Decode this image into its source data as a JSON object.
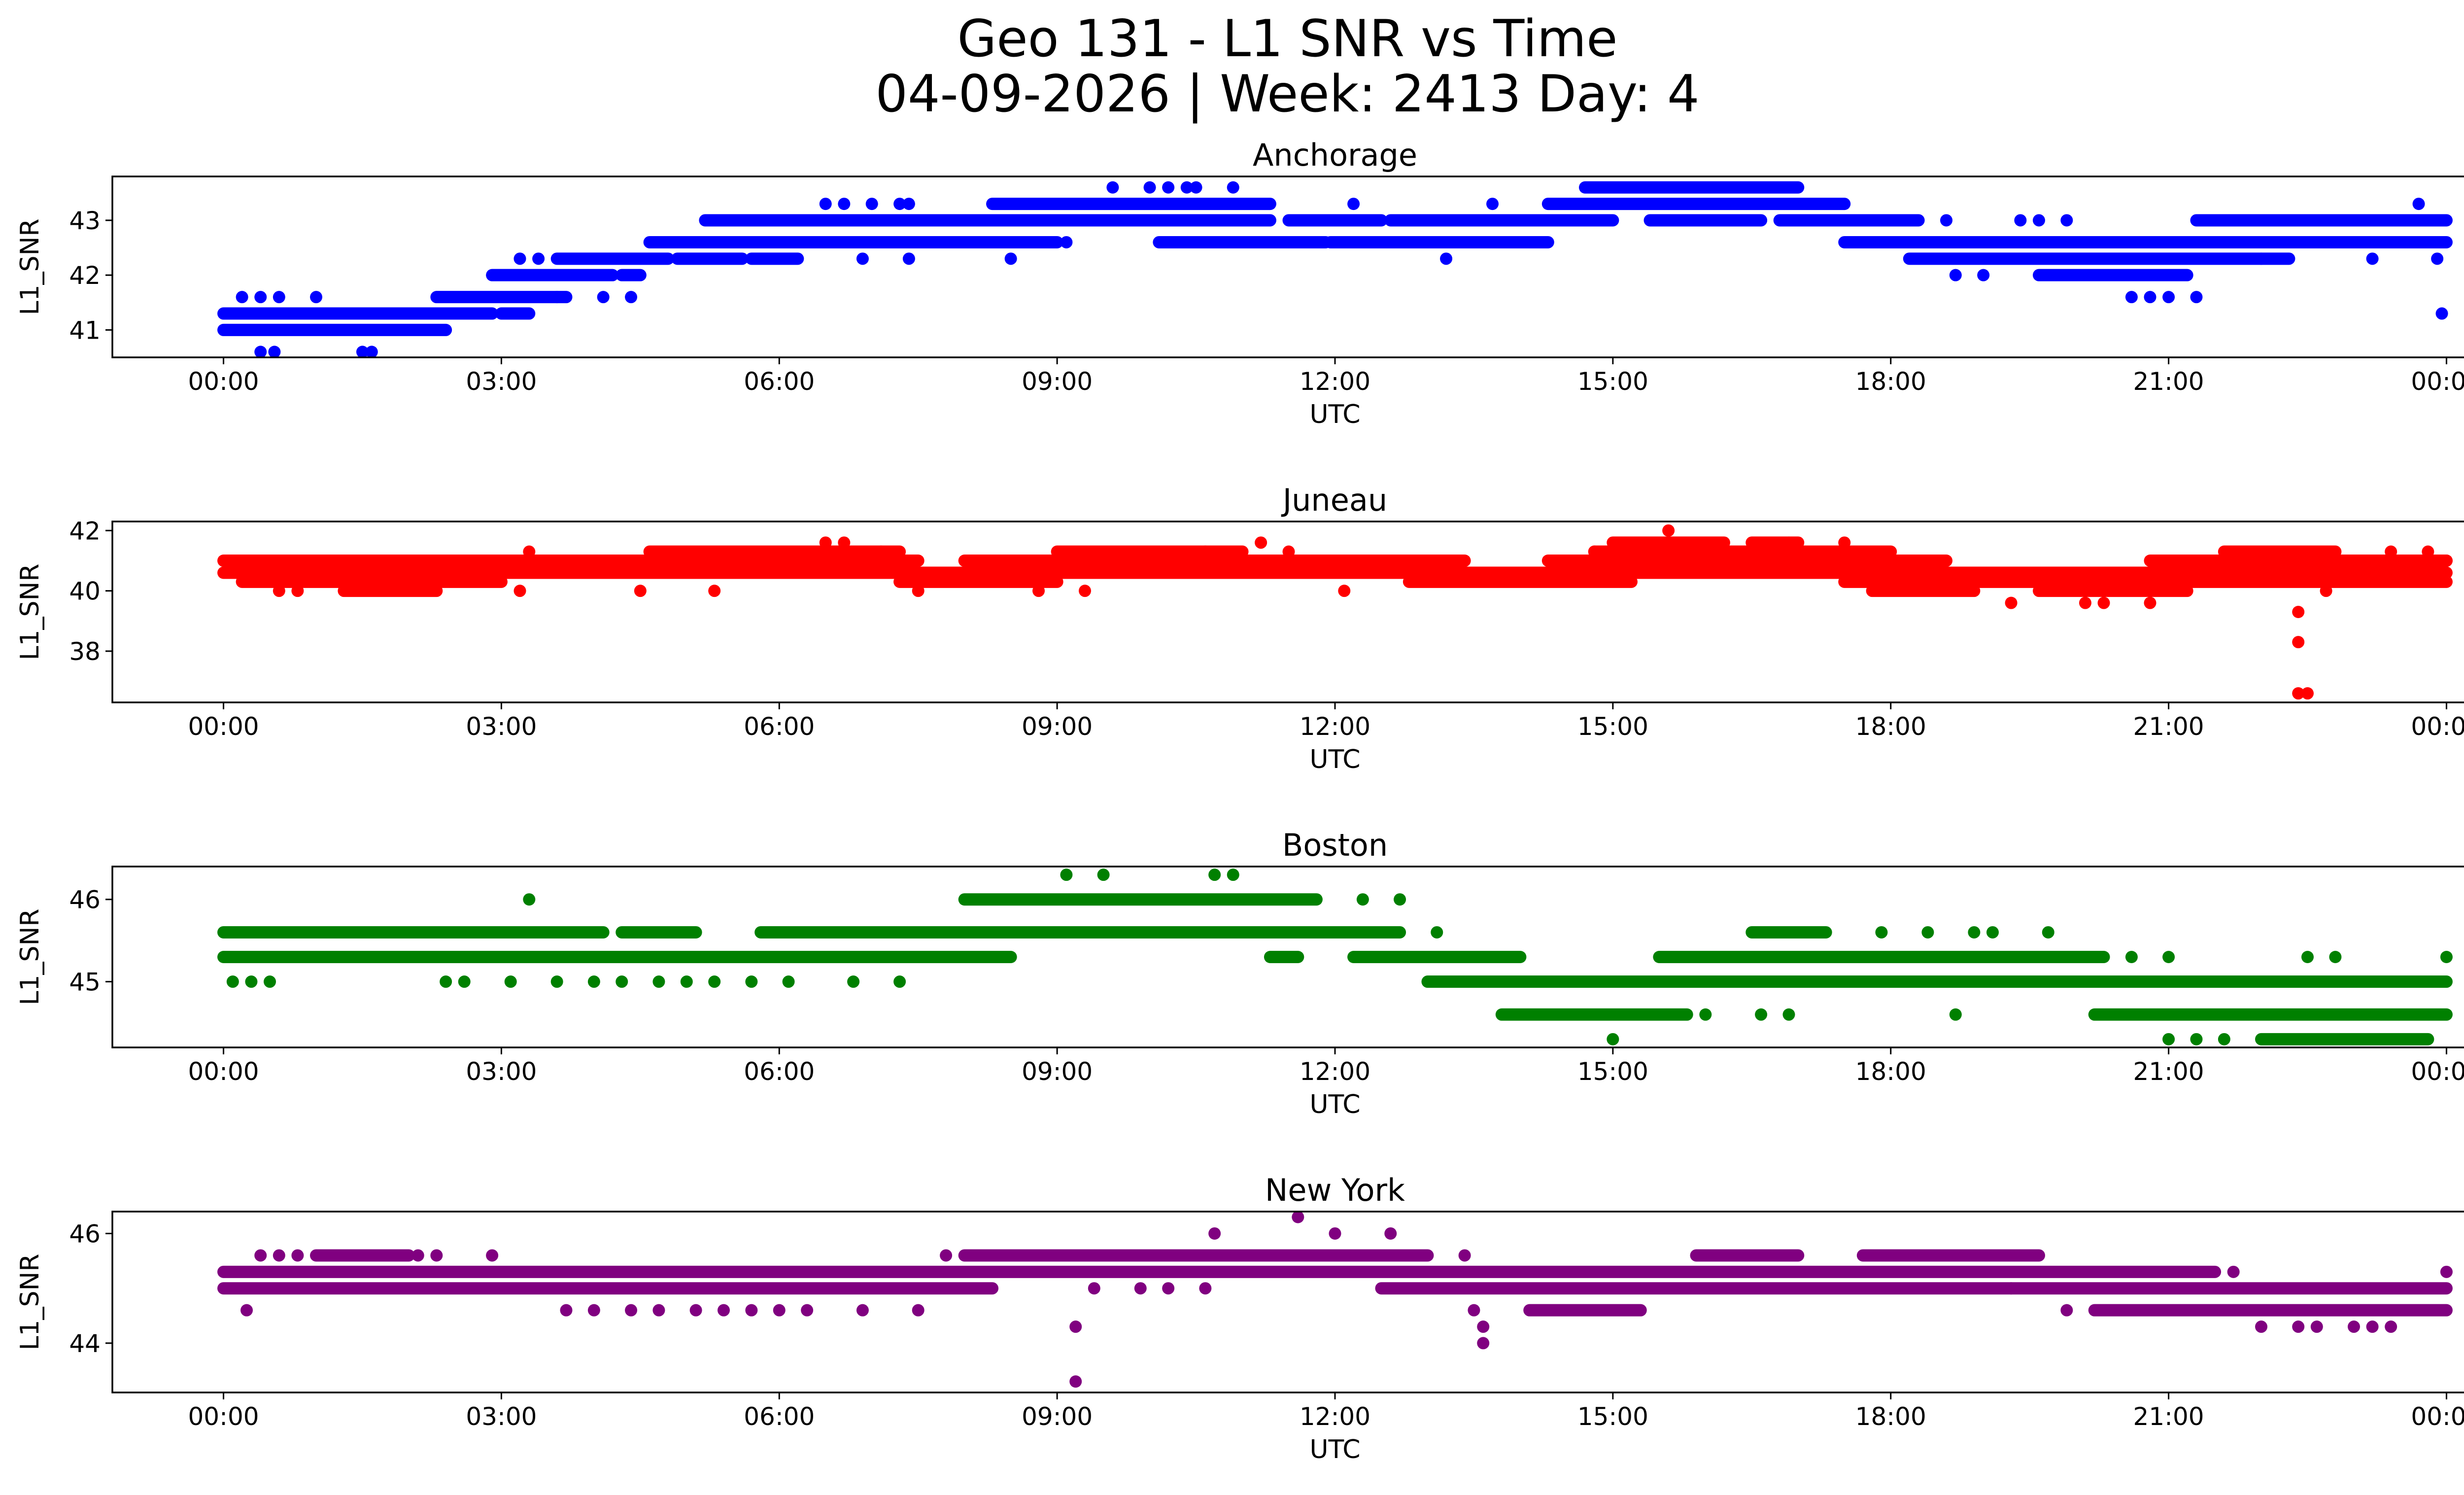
{
  "figure": {
    "title_line1": "Geo 131 - L1 SNR vs Time",
    "title_line2": "04-09-2026 | Week: 2413 Day: 4"
  },
  "chart_data": [
    {
      "type": "scatter",
      "title": "Anchorage",
      "xlabel": "UTC",
      "ylabel": "L1_SNR",
      "color": "#0000ff",
      "xticks": [
        0,
        3,
        6,
        9,
        12,
        15,
        18,
        21,
        24
      ],
      "xtick_labels": [
        "00:00",
        "03:00",
        "06:00",
        "09:00",
        "12:00",
        "15:00",
        "18:00",
        "21:00",
        "00:00"
      ],
      "xlim": [
        -1.2,
        25.2
      ],
      "yticks": [
        41,
        42,
        43
      ],
      "ylim": [
        40.5,
        43.8
      ],
      "bands": [
        {
          "y": 41.0,
          "ranges": [
            [
              0,
              2.4
            ]
          ]
        },
        {
          "y": 41.3,
          "ranges": [
            [
              0,
              2.9
            ],
            [
              3.0,
              3.3
            ]
          ]
        },
        {
          "y": 41.6,
          "ranges": [
            [
              2.3,
              3.7
            ]
          ]
        },
        {
          "y": 42.0,
          "ranges": [
            [
              2.9,
              4.2
            ],
            [
              4.3,
              4.5
            ]
          ]
        },
        {
          "y": 42.3,
          "ranges": [
            [
              3.6,
              4.8
            ],
            [
              4.9,
              5.6
            ],
            [
              5.7,
              6.2
            ]
          ]
        },
        {
          "y": 42.6,
          "ranges": [
            [
              4.6,
              9.0
            ],
            [
              10.1,
              11.9
            ],
            [
              11.95,
              14.3
            ],
            [
              17.5,
              24.0
            ]
          ]
        },
        {
          "y": 43.0,
          "ranges": [
            [
              5.2,
              11.3
            ],
            [
              11.5,
              12.5
            ],
            [
              12.6,
              15.0
            ],
            [
              15.4,
              16.6
            ],
            [
              16.8,
              18.3
            ],
            [
              21.3,
              24.0
            ]
          ]
        },
        {
          "y": 43.3,
          "ranges": [
            [
              8.3,
              11.3
            ],
            [
              14.3,
              17.5
            ]
          ]
        },
        {
          "y": 43.6,
          "ranges": [
            [
              14.7,
              17.0
            ]
          ]
        },
        {
          "y": 42.3,
          "ranges": [
            [
              18.2,
              22.3
            ]
          ]
        },
        {
          "y": 42.0,
          "ranges": [
            [
              19.6,
              21.2
            ]
          ]
        }
      ],
      "points": [
        [
          0.2,
          41.6
        ],
        [
          0.4,
          41.6
        ],
        [
          0.6,
          41.6
        ],
        [
          0.4,
          40.6
        ],
        [
          0.55,
          40.6
        ],
        [
          1.0,
          41.6
        ],
        [
          1.5,
          40.6
        ],
        [
          1.6,
          40.6
        ],
        [
          3.2,
          42.3
        ],
        [
          3.4,
          42.3
        ],
        [
          3.6,
          41.6
        ],
        [
          4.1,
          41.6
        ],
        [
          4.4,
          41.6
        ],
        [
          5.3,
          43.0
        ],
        [
          6.5,
          43.3
        ],
        [
          6.7,
          43.3
        ],
        [
          6.9,
          42.3
        ],
        [
          7.0,
          43.3
        ],
        [
          7.3,
          43.3
        ],
        [
          7.4,
          43.3
        ],
        [
          7.4,
          42.3
        ],
        [
          8.5,
          42.3
        ],
        [
          9.1,
          42.6
        ],
        [
          9.6,
          43.6
        ],
        [
          10.0,
          43.6
        ],
        [
          10.2,
          43.6
        ],
        [
          10.3,
          42.6
        ],
        [
          10.4,
          43.6
        ],
        [
          10.5,
          43.6
        ],
        [
          10.9,
          43.6
        ],
        [
          12.2,
          43.3
        ],
        [
          13.2,
          42.3
        ],
        [
          13.7,
          43.3
        ],
        [
          15.8,
          43.0
        ],
        [
          18.6,
          43.0
        ],
        [
          18.7,
          42.0
        ],
        [
          19.0,
          42.0
        ],
        [
          19.4,
          43.0
        ],
        [
          19.6,
          43.0
        ],
        [
          19.9,
          43.0
        ],
        [
          20.6,
          41.6
        ],
        [
          20.8,
          41.6
        ],
        [
          21.0,
          41.6
        ],
        [
          21.3,
          41.6
        ],
        [
          22.0,
          42.3
        ],
        [
          23.2,
          42.3
        ],
        [
          23.7,
          43.3
        ],
        [
          23.9,
          42.3
        ],
        [
          23.95,
          41.3
        ],
        [
          23.9,
          43.0
        ]
      ]
    },
    {
      "type": "scatter",
      "title": "Juneau",
      "xlabel": "UTC",
      "ylabel": "L1_SNR",
      "color": "#ff0000",
      "xticks": [
        0,
        3,
        6,
        9,
        12,
        15,
        18,
        21,
        24
      ],
      "xtick_labels": [
        "00:00",
        "03:00",
        "06:00",
        "09:00",
        "12:00",
        "15:00",
        "18:00",
        "21:00",
        "00:00"
      ],
      "xlim": [
        -1.2,
        25.2
      ],
      "yticks": [
        38,
        40,
        42
      ],
      "ylim": [
        36.3,
        42.3
      ],
      "bands": [
        {
          "y": 40.6,
          "ranges": [
            [
              0,
              24.0
            ]
          ]
        },
        {
          "y": 41.0,
          "ranges": [
            [
              0,
              7.5
            ],
            [
              8.0,
              13.4
            ],
            [
              14.3,
              18.6
            ],
            [
              20.8,
              24.0
            ]
          ]
        },
        {
          "y": 40.3,
          "ranges": [
            [
              0.2,
              3.0
            ],
            [
              7.3,
              9.0
            ],
            [
              12.8,
              15.2
            ],
            [
              17.5,
              24.0
            ]
          ]
        },
        {
          "y": 40.0,
          "ranges": [
            [
              1.3,
              2.3
            ],
            [
              17.8,
              18.9
            ],
            [
              19.6,
              21.2
            ]
          ]
        },
        {
          "y": 41.3,
          "ranges": [
            [
              4.6,
              7.3
            ],
            [
              9.0,
              11.0
            ],
            [
              14.8,
              18.0
            ],
            [
              21.6,
              22.8
            ]
          ]
        },
        {
          "y": 41.6,
          "ranges": [
            [
              15.0,
              16.2
            ],
            [
              16.5,
              17.0
            ]
          ]
        }
      ],
      "points": [
        [
          0.6,
          40.0
        ],
        [
          0.8,
          40.0
        ],
        [
          3.2,
          40.0
        ],
        [
          3.3,
          41.3
        ],
        [
          4.5,
          40.0
        ],
        [
          5.3,
          40.0
        ],
        [
          6.5,
          41.6
        ],
        [
          6.7,
          41.6
        ],
        [
          7.1,
          41.3
        ],
        [
          7.5,
          40.0
        ],
        [
          8.8,
          40.0
        ],
        [
          9.3,
          40.0
        ],
        [
          10.6,
          41.3
        ],
        [
          11.2,
          41.6
        ],
        [
          11.5,
          41.3
        ],
        [
          12.1,
          40.0
        ],
        [
          14.8,
          41.3
        ],
        [
          15.6,
          42.0
        ],
        [
          16.9,
          41.6
        ],
        [
          17.5,
          41.6
        ],
        [
          19.3,
          39.6
        ],
        [
          20.1,
          39.6
        ],
        [
          20.3,
          39.6
        ],
        [
          20.8,
          39.6
        ],
        [
          22.4,
          39.3
        ],
        [
          22.4,
          38.3
        ],
        [
          22.4,
          36.6
        ],
        [
          22.5,
          36.6
        ],
        [
          22.7,
          40.0
        ],
        [
          23.4,
          41.3
        ],
        [
          23.8,
          41.3
        ],
        [
          24.0,
          41.0
        ]
      ]
    },
    {
      "type": "scatter",
      "title": "Boston",
      "xlabel": "UTC",
      "ylabel": "L1_SNR",
      "color": "#008000",
      "xticks": [
        0,
        3,
        6,
        9,
        12,
        15,
        18,
        21,
        24
      ],
      "xtick_labels": [
        "00:00",
        "03:00",
        "06:00",
        "09:00",
        "12:00",
        "15:00",
        "18:00",
        "21:00",
        "00:00"
      ],
      "xlim": [
        -1.2,
        25.2
      ],
      "yticks": [
        45,
        46
      ],
      "ylim": [
        44.2,
        46.4
      ],
      "bands": [
        {
          "y": 45.3,
          "ranges": [
            [
              0,
              8.5
            ],
            [
              11.3,
              11.6
            ],
            [
              12.2,
              14.0
            ],
            [
              15.5,
              20.3
            ]
          ]
        },
        {
          "y": 45.6,
          "ranges": [
            [
              0,
              4.1
            ],
            [
              4.3,
              5.1
            ],
            [
              5.8,
              12.7
            ],
            [
              16.5,
              17.3
            ]
          ]
        },
        {
          "y": 45.0,
          "ranges": [
            [
              13.0,
              24.0
            ]
          ]
        },
        {
          "y": 44.6,
          "ranges": [
            [
              13.8,
              15.8
            ],
            [
              20.2,
              24.0
            ]
          ]
        },
        {
          "y": 46.0,
          "ranges": [
            [
              8.0,
              11.8
            ]
          ]
        },
        {
          "y": 44.3,
          "ranges": [
            [
              22.0,
              23.8
            ]
          ]
        }
      ],
      "points": [
        [
          0.1,
          45.0
        ],
        [
          0.3,
          45.0
        ],
        [
          0.5,
          45.0
        ],
        [
          2.4,
          45.0
        ],
        [
          2.6,
          45.0
        ],
        [
          3.1,
          45.0
        ],
        [
          3.3,
          46.0
        ],
        [
          3.6,
          45.0
        ],
        [
          4.0,
          45.0
        ],
        [
          4.3,
          45.0
        ],
        [
          4.7,
          45.0
        ],
        [
          5.0,
          45.0
        ],
        [
          5.3,
          45.0
        ],
        [
          5.7,
          45.0
        ],
        [
          6.1,
          45.0
        ],
        [
          6.8,
          45.0
        ],
        [
          7.3,
          45.0
        ],
        [
          9.1,
          46.3
        ],
        [
          9.5,
          46.3
        ],
        [
          10.7,
          46.3
        ],
        [
          10.9,
          46.3
        ],
        [
          12.3,
          46.0
        ],
        [
          12.7,
          46.0
        ],
        [
          13.1,
          45.6
        ],
        [
          15.0,
          44.3
        ],
        [
          16.0,
          44.6
        ],
        [
          16.6,
          44.6
        ],
        [
          16.9,
          44.6
        ],
        [
          17.9,
          45.6
        ],
        [
          18.4,
          45.6
        ],
        [
          18.7,
          44.6
        ],
        [
          18.9,
          45.6
        ],
        [
          19.1,
          45.6
        ],
        [
          19.7,
          45.6
        ],
        [
          20.6,
          45.3
        ],
        [
          21.0,
          45.3
        ],
        [
          21.0,
          44.3
        ],
        [
          21.3,
          44.3
        ],
        [
          21.6,
          44.3
        ],
        [
          22.5,
          45.3
        ],
        [
          22.8,
          45.3
        ],
        [
          24.0,
          45.3
        ]
      ]
    },
    {
      "type": "scatter",
      "title": "New York",
      "xlabel": "UTC",
      "ylabel": "L1_SNR",
      "color": "#800080",
      "xticks": [
        0,
        3,
        6,
        9,
        12,
        15,
        18,
        21,
        24
      ],
      "xtick_labels": [
        "00:00",
        "03:00",
        "06:00",
        "09:00",
        "12:00",
        "15:00",
        "18:00",
        "21:00",
        "00:00"
      ],
      "xlim": [
        -1.2,
        25.2
      ],
      "yticks": [
        44,
        46
      ],
      "ylim": [
        43.1,
        46.4
      ],
      "bands": [
        {
          "y": 45.3,
          "ranges": [
            [
              0,
              21.5
            ]
          ]
        },
        {
          "y": 45.0,
          "ranges": [
            [
              0,
              8.3
            ],
            [
              12.5,
              24.0
            ]
          ]
        },
        {
          "y": 45.6,
          "ranges": [
            [
              1.0,
              2.0
            ],
            [
              8.0,
              13.0
            ],
            [
              15.9,
              17.0
            ],
            [
              17.7,
              19.6
            ]
          ]
        },
        {
          "y": 44.6,
          "ranges": [
            [
              14.1,
              15.3
            ],
            [
              20.2,
              24.0
            ]
          ]
        }
      ],
      "points": [
        [
          0.25,
          44.6
        ],
        [
          0.4,
          45.6
        ],
        [
          0.6,
          45.6
        ],
        [
          0.8,
          45.6
        ],
        [
          1.3,
          45.6
        ],
        [
          2.1,
          45.6
        ],
        [
          2.3,
          45.6
        ],
        [
          2.9,
          45.6
        ],
        [
          3.7,
          44.6
        ],
        [
          4.0,
          44.6
        ],
        [
          4.4,
          44.6
        ],
        [
          4.7,
          44.6
        ],
        [
          5.1,
          44.6
        ],
        [
          5.4,
          44.6
        ],
        [
          5.7,
          44.6
        ],
        [
          6.0,
          44.6
        ],
        [
          6.3,
          44.6
        ],
        [
          6.9,
          44.6
        ],
        [
          7.5,
          44.6
        ],
        [
          7.8,
          45.6
        ],
        [
          9.2,
          44.3
        ],
        [
          9.2,
          43.3
        ],
        [
          9.4,
          45.0
        ],
        [
          9.9,
          45.0
        ],
        [
          10.2,
          45.0
        ],
        [
          10.6,
          45.0
        ],
        [
          10.7,
          46.0
        ],
        [
          11.6,
          46.3
        ],
        [
          12.0,
          46.0
        ],
        [
          12.6,
          46.0
        ],
        [
          13.5,
          44.6
        ],
        [
          13.6,
          44.3
        ],
        [
          13.6,
          44.0
        ],
        [
          13.4,
          45.6
        ],
        [
          19.3,
          45.0
        ],
        [
          19.9,
          44.6
        ],
        [
          21.7,
          45.3
        ],
        [
          22.0,
          44.3
        ],
        [
          22.4,
          44.3
        ],
        [
          22.6,
          44.3
        ],
        [
          23.0,
          44.3
        ],
        [
          23.2,
          44.3
        ],
        [
          23.4,
          44.3
        ],
        [
          24.0,
          45.3
        ]
      ]
    }
  ]
}
